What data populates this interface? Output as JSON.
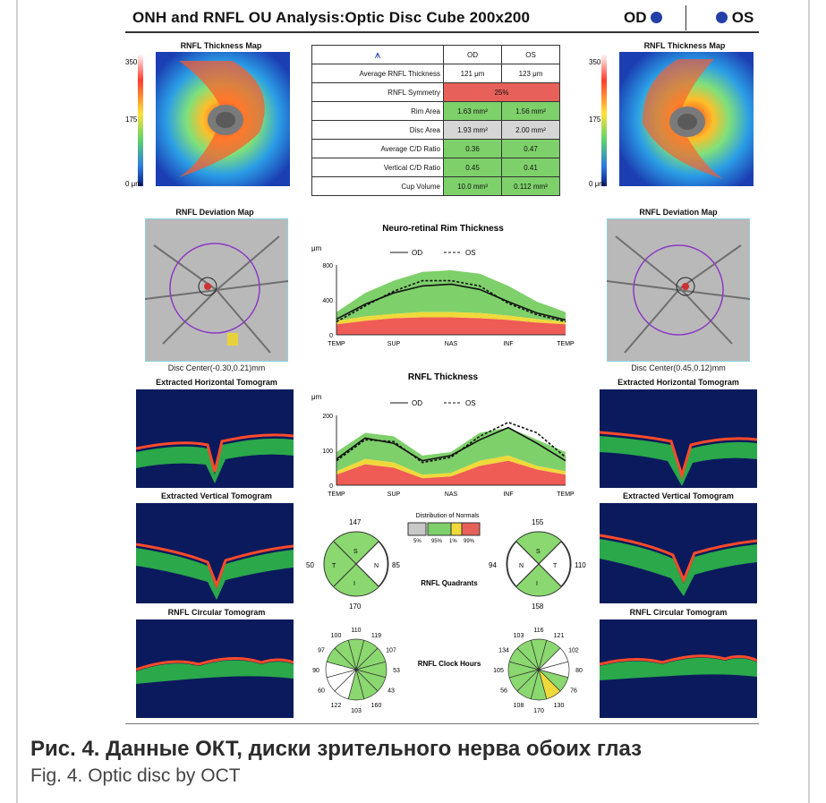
{
  "header": {
    "title": "ONH and RNFL OU Analysis:Optic Disc Cube 200x200",
    "od_label": "OD",
    "os_label": "OS"
  },
  "thickness_map": {
    "title_od": "RNFL Thickness Map",
    "title_os": "RNFL Thickness Map",
    "scale_top": "350",
    "scale_mid": "175",
    "scale_bottom": "0 μm"
  },
  "summary_table": {
    "col_od": "OD",
    "col_os": "OS",
    "rows": [
      {
        "label": "Average RNFL Thickness",
        "od": "121 μm",
        "os": "123 μm"
      },
      {
        "label": "RNFL Symmetry",
        "merged": "25%"
      },
      {
        "label": "Rim Area",
        "od": "1.63 mm²",
        "os": "1.56 mm²"
      },
      {
        "label": "Disc Area",
        "od": "1.93 mm²",
        "os": "2.00 mm²"
      },
      {
        "label": "Average C/D Ratio",
        "od": "0.36",
        "os": "0.47"
      },
      {
        "label": "Vertical C/D Ratio",
        "od": "0.45",
        "os": "0.41"
      },
      {
        "label": "Cup Volume",
        "od": "10.0 mm³",
        "os": "0.112 mm³"
      }
    ]
  },
  "deviation_map": {
    "title_od": "RNFL Deviation Map",
    "title_os": "RNFL Deviation Map",
    "center_od": "Disc Center(-0.30,0.21)mm",
    "center_os": "Disc Center(0.45,0.12)mm"
  },
  "tomograms": {
    "horizontal_od": "Extracted Horizontal Tomogram",
    "horizontal_os": "Extracted Horizontal Tomogram",
    "vertical_od": "Extracted Vertical Tomogram",
    "vertical_os": "Extracted Vertical Tomogram",
    "circular_od": "RNFL Circular Tomogram",
    "circular_os": "RNFL Circular Tomogram"
  },
  "chart_data": [
    {
      "type": "area",
      "title": "Neuro-retinal Rim Thickness",
      "ylabel": "μm",
      "ylim": [
        0,
        800
      ],
      "yticks": [
        "800",
        "400",
        "0"
      ],
      "categories": [
        "TEMP",
        "SUP",
        "NAS",
        "INF",
        "TEMP"
      ],
      "x": [
        0,
        45,
        90,
        135,
        180,
        225,
        270,
        315,
        360
      ],
      "series": [
        {
          "name": "OD",
          "values": [
            180,
            350,
            480,
            560,
            580,
            520,
            380,
            250,
            170
          ]
        },
        {
          "name": "OS",
          "values": [
            150,
            330,
            500,
            620,
            620,
            560,
            360,
            230,
            150
          ]
        }
      ],
      "normative_bands": {
        "red_upper": [
          120,
          160,
          190,
          200,
          200,
          190,
          170,
          140,
          120
        ],
        "yellow_upper": [
          160,
          210,
          240,
          260,
          260,
          250,
          220,
          180,
          150
        ],
        "green_upper": [
          260,
          480,
          620,
          720,
          740,
          700,
          560,
          380,
          260
        ]
      }
    },
    {
      "type": "area",
      "title": "RNFL Thickness",
      "ylabel": "μm",
      "ylim": [
        0,
        200
      ],
      "yticks": [
        "200",
        "100",
        "0"
      ],
      "categories": [
        "TEMP",
        "SUP",
        "NAS",
        "INF",
        "TEMP"
      ],
      "x": [
        0,
        45,
        90,
        135,
        180,
        225,
        270,
        315,
        360
      ],
      "series": [
        {
          "name": "OD",
          "values": [
            75,
            135,
            120,
            70,
            85,
            130,
            165,
            120,
            70
          ]
        },
        {
          "name": "OS",
          "values": [
            70,
            130,
            125,
            65,
            80,
            140,
            180,
            150,
            80
          ]
        }
      ],
      "normative_bands": {
        "red_upper": [
          30,
          60,
          50,
          20,
          25,
          55,
          70,
          45,
          30
        ],
        "yellow_upper": [
          40,
          75,
          65,
          30,
          35,
          70,
          85,
          55,
          40
        ],
        "green_upper": [
          95,
          150,
          140,
          85,
          95,
          150,
          165,
          130,
          95
        ]
      }
    }
  ],
  "quadrants": {
    "title": "RNFL Quadrants",
    "od": {
      "S": "147",
      "N": "85",
      "I": "170",
      "T": "50"
    },
    "os": {
      "S": "155",
      "N": "94",
      "I": "158",
      "T": "110"
    }
  },
  "legend": {
    "title": "Distribution of Normals",
    "values": [
      "5%",
      "95%",
      "1%",
      "99%"
    ]
  },
  "clock_hours": {
    "title": "RNFL Clock Hours",
    "od": [
      "110",
      "119",
      "107",
      "53",
      "43",
      "160",
      "103",
      "122",
      "60",
      "90",
      "97",
      "100"
    ],
    "os": [
      "116",
      "121",
      "102",
      "80",
      "76",
      "130",
      "170",
      "108",
      "56",
      "105",
      "134",
      "103"
    ]
  },
  "caption": {
    "ru": "Рис. 4. Данные ОКТ, диски зрительного нерва обоих глаз",
    "en": "Fig. 4. Optic disc by OCT"
  }
}
